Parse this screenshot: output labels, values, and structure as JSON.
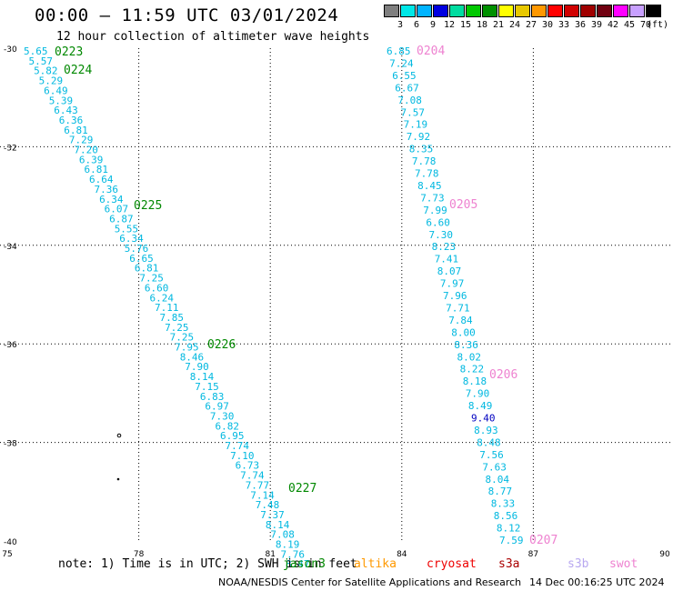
{
  "title": "00:00 – 11:59 UTC 03/01/2024",
  "subtitle": "12 hour collection of altimeter wave heights",
  "legend": {
    "levels": [
      "3",
      "6",
      "9",
      "12",
      "15",
      "18",
      "21",
      "24",
      "27",
      "30",
      "33",
      "36",
      "39",
      "42",
      "45",
      "70"
    ],
    "colors": [
      "#7f7f7f",
      "#00e8e8",
      "#00b4ff",
      "#0000e0",
      "#00dca0",
      "#00c800",
      "#009000",
      "#ffff00",
      "#e8c800",
      "#ff9800",
      "#ff0000",
      "#d00000",
      "#a00000",
      "#700010",
      "#ff00ff",
      "#c8a0ff",
      "#000000"
    ],
    "unit": "(ft)"
  },
  "axes": {
    "lat_ticks": [
      "-30",
      "-32",
      "-34",
      "-36",
      "-38",
      "-40"
    ],
    "lon_ticks": [
      "75",
      "78",
      "81",
      "84",
      "87",
      "90"
    ]
  },
  "tracks": [
    {
      "labels": [
        {
          "text": "0223",
          "color": "#008800"
        },
        {
          "text": "0224",
          "color": "#008800"
        },
        {
          "text": "0225",
          "color": "#008800"
        },
        {
          "text": "0226",
          "color": "#008800"
        },
        {
          "text": "0227",
          "color": "#008800"
        }
      ],
      "values": [
        "5.65",
        "5.57",
        "5.82",
        "5.29",
        "6.49",
        "5.39",
        "6.43",
        "6.36",
        "6.81",
        "7.29",
        "7.20",
        "6.39",
        "6.81",
        "6.64",
        "7.36",
        "6.34",
        "6.07",
        "6.87",
        "5.55",
        "6.34",
        "5.76",
        "6.65",
        "6.81",
        "7.25",
        "6.60",
        "6.24",
        "7.11",
        "7.85",
        "7.25",
        "7.25",
        "7.95",
        "8.46",
        "7.90",
        "8.14",
        "7.15",
        "6.83",
        "6.97",
        "7.30",
        "6.82",
        "6.95",
        "7.74",
        "7.10",
        "6.73",
        "7.74",
        "7.77",
        "7.14",
        "7.48",
        "7.37",
        "8.14",
        "7.08",
        "8.19",
        "7.76",
        "8.47"
      ]
    },
    {
      "labels": [
        {
          "text": "0204",
          "color": "#ee82d0"
        },
        {
          "text": "0205",
          "color": "#ee82d0"
        },
        {
          "text": "0206",
          "color": "#ee82d0"
        },
        {
          "text": "0207",
          "color": "#ee82d0"
        }
      ],
      "values": [
        "6.85",
        "7.24",
        "6.55",
        "6.67",
        "7.08",
        "7.57",
        "7.19",
        "7.92",
        "8.35",
        "7.78",
        "7.78",
        "8.45",
        "7.73",
        "7.99",
        "6.60",
        "7.30",
        "8.23",
        "7.41",
        "8.07",
        "7.97",
        "7.96",
        "7.71",
        "7.84",
        "8.00",
        "8.36",
        "8.02",
        "8.22",
        "8.18",
        "7.90",
        "8.49",
        "9.40",
        "8.93",
        "8.48",
        "7.56",
        "7.63",
        "8.04",
        "8.77",
        "8.33",
        "8.56",
        "8.12",
        "7.59"
      ],
      "highlight": {
        "value": "9.40",
        "color": "#0000c0"
      }
    }
  ],
  "footer": {
    "note": "note: 1) Time is in UTC; 2) SWH is in feet",
    "satellites": [
      {
        "name": "jason3",
        "color": "#008800"
      },
      {
        "name": "altika",
        "color": "#ff9900"
      },
      {
        "name": "cryosat",
        "color": "#ee0000"
      },
      {
        "name": "s3a",
        "color": "#aa0000"
      },
      {
        "name": "s3b",
        "color": "#b8a8f0"
      },
      {
        "name": "swot",
        "color": "#ee82d0"
      }
    ],
    "credit": "NOAA/NESDIS Center for Satellite Applications and Research",
    "timestamp": "14 Dec 00:16:25 UTC 2024"
  }
}
